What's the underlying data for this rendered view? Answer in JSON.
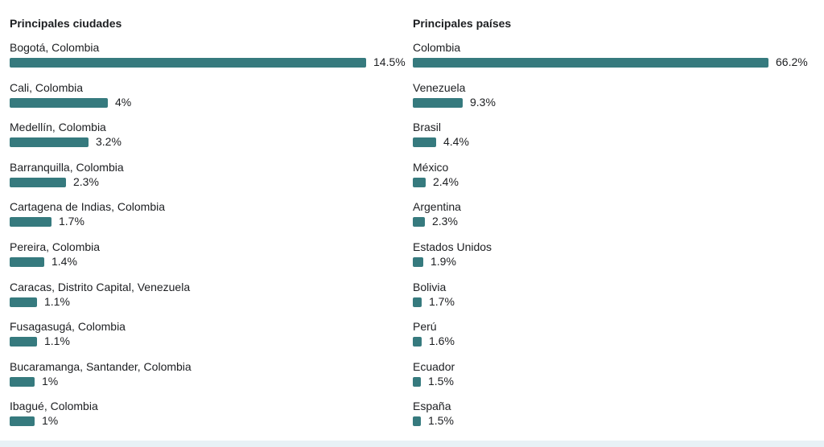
{
  "chart_data": [
    {
      "type": "bar",
      "orientation": "horizontal",
      "title": "Principales ciudades",
      "max_value": 14.5,
      "categories": [
        "Bogotá, Colombia",
        "Cali, Colombia",
        "Medellín, Colombia",
        "Barranquilla, Colombia",
        "Cartagena de Indias, Colombia",
        "Pereira, Colombia",
        "Caracas, Distrito Capital, Venezuela",
        "Fusagasugá, Colombia",
        "Bucaramanga, Santander, Colombia",
        "Ibagué, Colombia"
      ],
      "values": [
        14.5,
        4,
        3.2,
        2.3,
        1.7,
        1.4,
        1.1,
        1.1,
        1,
        1
      ],
      "value_labels": [
        "14.5%",
        "4%",
        "3.2%",
        "2.3%",
        "1.7%",
        "1.4%",
        "1.1%",
        "1.1%",
        "1%",
        "1%"
      ],
      "bar_color": "#367a7e"
    },
    {
      "type": "bar",
      "orientation": "horizontal",
      "title": "Principales países",
      "max_value": 66.2,
      "categories": [
        "Colombia",
        "Venezuela",
        "Brasil",
        "México",
        "Argentina",
        "Estados Unidos",
        "Bolivia",
        "Perú",
        "Ecuador",
        "España"
      ],
      "values": [
        66.2,
        9.3,
        4.4,
        2.4,
        2.3,
        1.9,
        1.7,
        1.6,
        1.5,
        1.5
      ],
      "value_labels": [
        "66.2%",
        "9.3%",
        "4.4%",
        "2.4%",
        "2.3%",
        "1.9%",
        "1.7%",
        "1.6%",
        "1.5%",
        "1.5%"
      ],
      "bar_color": "#367a7e"
    }
  ]
}
